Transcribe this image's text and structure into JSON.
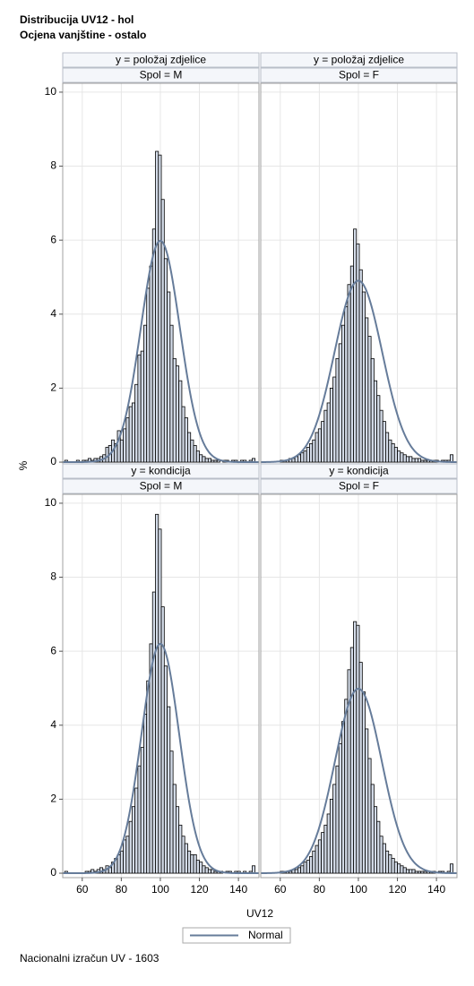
{
  "chart_data": {
    "type": "panel_histogram",
    "title": "Distribucija UV12 - hol",
    "subtitle": "Ocjena vanjštine - ostalo",
    "x_label": "UV12",
    "y_label": "%",
    "footnote": "Nacionalni izračun UV - 1603",
    "legend": [
      "Normal"
    ],
    "bar_color": "#d3dbe8",
    "normal_color": "#667c9a",
    "grid": true,
    "xlim": [
      50,
      150.5
    ],
    "xticks": [
      60,
      80,
      100,
      120,
      140
    ],
    "ylim": [
      -0.12,
      10.24
    ],
    "yticks": [
      0,
      2,
      4,
      6,
      8,
      10
    ],
    "bins": [
      51,
      52.5,
      54,
      55.5,
      57,
      58.5,
      60,
      61.5,
      63,
      64.5,
      66,
      67.5,
      69,
      70.5,
      72,
      73.5,
      75,
      76.5,
      78,
      79.5,
      81,
      82.5,
      84,
      85.5,
      87,
      88.5,
      90,
      91.5,
      93,
      94.5,
      96,
      97.5,
      99,
      100.5,
      102,
      103.5,
      105,
      106.5,
      108,
      109.5,
      111,
      112.5,
      114,
      115.5,
      117,
      118.5,
      120,
      121.5,
      123,
      124.5,
      126,
      127.5,
      129,
      130.5,
      132,
      133.5,
      135,
      136.5,
      138,
      139.5,
      141,
      142.5,
      144,
      145.5,
      147,
      148.5
    ],
    "panels": [
      {
        "row_label": "y = položaj zdjelice",
        "col_label": "Spol = M",
        "normal_mean": 100,
        "normal_sd": 10,
        "values": [
          0.05,
          0,
          0,
          0,
          0.05,
          0,
          0.05,
          0.05,
          0.1,
          0.05,
          0.1,
          0.1,
          0.15,
          0.2,
          0.4,
          0.45,
          0.6,
          0.5,
          0.85,
          0.6,
          0.9,
          1.2,
          1.5,
          1.6,
          2.1,
          2.9,
          3.0,
          3.7,
          4.7,
          5.3,
          6.3,
          8.4,
          8.3,
          7.1,
          5.5,
          4.6,
          3.7,
          2.8,
          2.6,
          2.2,
          1.5,
          1.2,
          0.8,
          0.6,
          0.45,
          0.3,
          0.2,
          0.15,
          0.1,
          0.1,
          0.05,
          0.05,
          0.05,
          0,
          0.05,
          0.05,
          0,
          0.05,
          0.05,
          0,
          0.05,
          0.05,
          0,
          0.05,
          0.1
        ]
      },
      {
        "row_label": "y = položaj zdjelice",
        "col_label": "Spol = F",
        "normal_mean": 100,
        "normal_sd": 12.2,
        "values": [
          0,
          0,
          0,
          0,
          0,
          0,
          0.05,
          0.05,
          0.05,
          0.1,
          0.1,
          0.15,
          0.2,
          0.25,
          0.3,
          0.4,
          0.5,
          0.6,
          0.8,
          0.9,
          1.1,
          1.4,
          1.6,
          2.0,
          2.3,
          2.8,
          3.2,
          3.7,
          4.2,
          4.8,
          5.3,
          6.3,
          5.9,
          5.2,
          4.6,
          3.9,
          3.4,
          2.8,
          2.2,
          1.8,
          1.4,
          1.1,
          0.8,
          0.6,
          0.5,
          0.4,
          0.3,
          0.25,
          0.2,
          0.15,
          0.15,
          0.1,
          0.1,
          0.1,
          0.05,
          0.05,
          0.05,
          0.05,
          0.05,
          0.05,
          0,
          0.05,
          0.05,
          0.05,
          0.2
        ]
      },
      {
        "row_label": "y = kondicija",
        "col_label": "Spol = M",
        "normal_mean": 100,
        "normal_sd": 9.65,
        "values": [
          0.05,
          0,
          0,
          0,
          0,
          0,
          0,
          0.05,
          0.05,
          0.1,
          0.05,
          0.1,
          0.15,
          0.1,
          0.2,
          0.15,
          0.3,
          0.4,
          0.5,
          0.6,
          0.9,
          1.0,
          1.4,
          1.8,
          2.3,
          2.9,
          3.4,
          4.3,
          5.2,
          6.2,
          7.6,
          9.7,
          9.3,
          7.2,
          5.6,
          4.5,
          3.3,
          2.4,
          1.8,
          1.3,
          1.0,
          0.8,
          0.6,
          0.5,
          0.5,
          0.35,
          0.3,
          0.2,
          0.15,
          0.1,
          0.1,
          0.05,
          0.05,
          0.05,
          0,
          0.05,
          0.05,
          0,
          0.05,
          0.05,
          0,
          0.05,
          0,
          0.05,
          0.2
        ]
      },
      {
        "row_label": "y = kondicija",
        "col_label": "Spol = F",
        "normal_mean": 100,
        "normal_sd": 12,
        "values": [
          0,
          0,
          0,
          0,
          0,
          0,
          0.05,
          0.05,
          0.05,
          0.05,
          0.1,
          0.1,
          0.15,
          0.2,
          0.3,
          0.35,
          0.45,
          0.6,
          0.75,
          0.9,
          1.1,
          1.3,
          1.6,
          2.0,
          2.4,
          2.9,
          3.5,
          4.1,
          4.7,
          5.5,
          6.1,
          6.8,
          6.7,
          5.7,
          4.9,
          3.9,
          3.1,
          2.4,
          1.8,
          1.4,
          1.0,
          0.8,
          0.6,
          0.5,
          0.4,
          0.3,
          0.25,
          0.2,
          0.15,
          0.1,
          0.1,
          0.1,
          0.05,
          0.05,
          0.05,
          0.05,
          0.05,
          0.05,
          0.05,
          0,
          0.05,
          0.05,
          0,
          0.05,
          0.25
        ]
      }
    ]
  }
}
